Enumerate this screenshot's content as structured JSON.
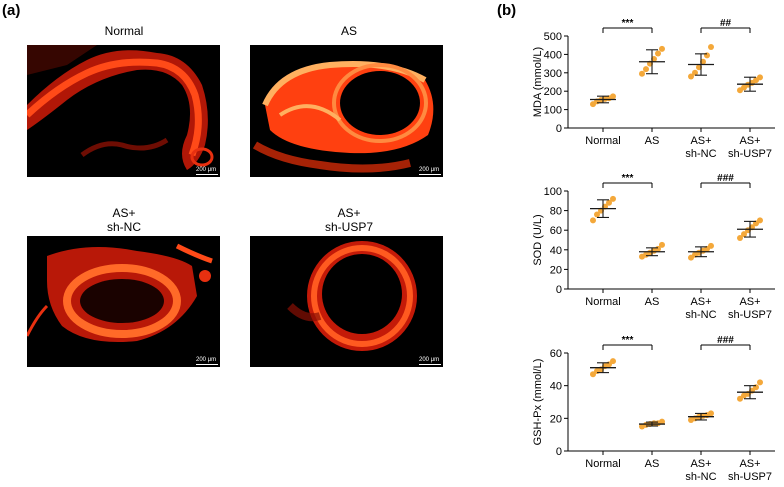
{
  "panels": {
    "a": "(a)",
    "b": "(b)"
  },
  "micrographs": [
    {
      "title_lines": [
        "Normal"
      ],
      "scale": "200 μm",
      "variant": "normal"
    },
    {
      "title_lines": [
        "AS"
      ],
      "scale": "200 μm",
      "variant": "as"
    },
    {
      "title_lines": [
        "AS+",
        "sh-NC"
      ],
      "scale": "200 μm",
      "variant": "shnc"
    },
    {
      "title_lines": [
        "AS+",
        "sh-USP7"
      ],
      "scale": "200 μm",
      "variant": "shusp7"
    }
  ],
  "colors": {
    "dots": "#f4a83a",
    "tissue": "#ff3b10",
    "bright": "#ffb060",
    "bars": "#1a1a1a"
  },
  "chart_data": [
    {
      "type": "scatter",
      "ylabel": "MDA (mmol/L)",
      "ylim": [
        0,
        500
      ],
      "yticks": [
        0,
        100,
        200,
        300,
        400,
        500
      ],
      "categories": [
        [
          "Normal"
        ],
        [
          "AS"
        ],
        [
          "AS+",
          "sh-NC"
        ],
        [
          "AS+",
          "sh-USP7"
        ]
      ],
      "means": [
        155,
        360,
        345,
        238
      ],
      "sd": [
        18,
        65,
        58,
        38
      ],
      "points": [
        [
          130,
          145,
          152,
          158,
          162,
          172
        ],
        [
          295,
          320,
          350,
          375,
          405,
          430
        ],
        [
          280,
          300,
          330,
          360,
          395,
          440
        ],
        [
          205,
          220,
          235,
          245,
          260,
          275
        ]
      ],
      "brackets": [
        {
          "from": 0,
          "to": 1,
          "label": "***"
        },
        {
          "from": 2,
          "to": 3,
          "label": "##"
        }
      ]
    },
    {
      "type": "scatter",
      "ylabel": "SOD (U/L)",
      "ylim": [
        0,
        100
      ],
      "yticks": [
        0,
        20,
        40,
        60,
        80,
        100
      ],
      "categories": [
        [
          "Normal"
        ],
        [
          "AS"
        ],
        [
          "AS+",
          "sh-NC"
        ],
        [
          "AS+",
          "sh-USP7"
        ]
      ],
      "means": [
        82,
        38,
        38,
        61
      ],
      "sd": [
        9,
        4,
        5,
        8
      ],
      "points": [
        [
          70,
          76,
          80,
          84,
          88,
          92
        ],
        [
          33,
          35,
          37,
          39,
          41,
          45
        ],
        [
          32,
          35,
          37,
          39,
          41,
          44
        ],
        [
          52,
          56,
          60,
          63,
          67,
          70
        ]
      ],
      "brackets": [
        {
          "from": 0,
          "to": 1,
          "label": "***"
        },
        {
          "from": 2,
          "to": 3,
          "label": "###"
        }
      ]
    },
    {
      "type": "scatter",
      "ylabel": "GSH-Px (mmol/L)",
      "ylim": [
        0,
        60
      ],
      "yticks": [
        0,
        20,
        40,
        60
      ],
      "categories": [
        [
          "Normal"
        ],
        [
          "AS"
        ],
        [
          "AS+",
          "sh-NC"
        ],
        [
          "AS+",
          "sh-USP7"
        ]
      ],
      "means": [
        51,
        16.5,
        21,
        36
      ],
      "sd": [
        3,
        1.2,
        2,
        4
      ],
      "points": [
        [
          47,
          49,
          50,
          52,
          53,
          55
        ],
        [
          15,
          16,
          16.5,
          17,
          17,
          18
        ],
        [
          19,
          20,
          21,
          21.5,
          22,
          23
        ],
        [
          32,
          34,
          35,
          37,
          39,
          42
        ]
      ],
      "brackets": [
        {
          "from": 0,
          "to": 1,
          "label": "***"
        },
        {
          "from": 2,
          "to": 3,
          "label": "###"
        }
      ]
    }
  ]
}
